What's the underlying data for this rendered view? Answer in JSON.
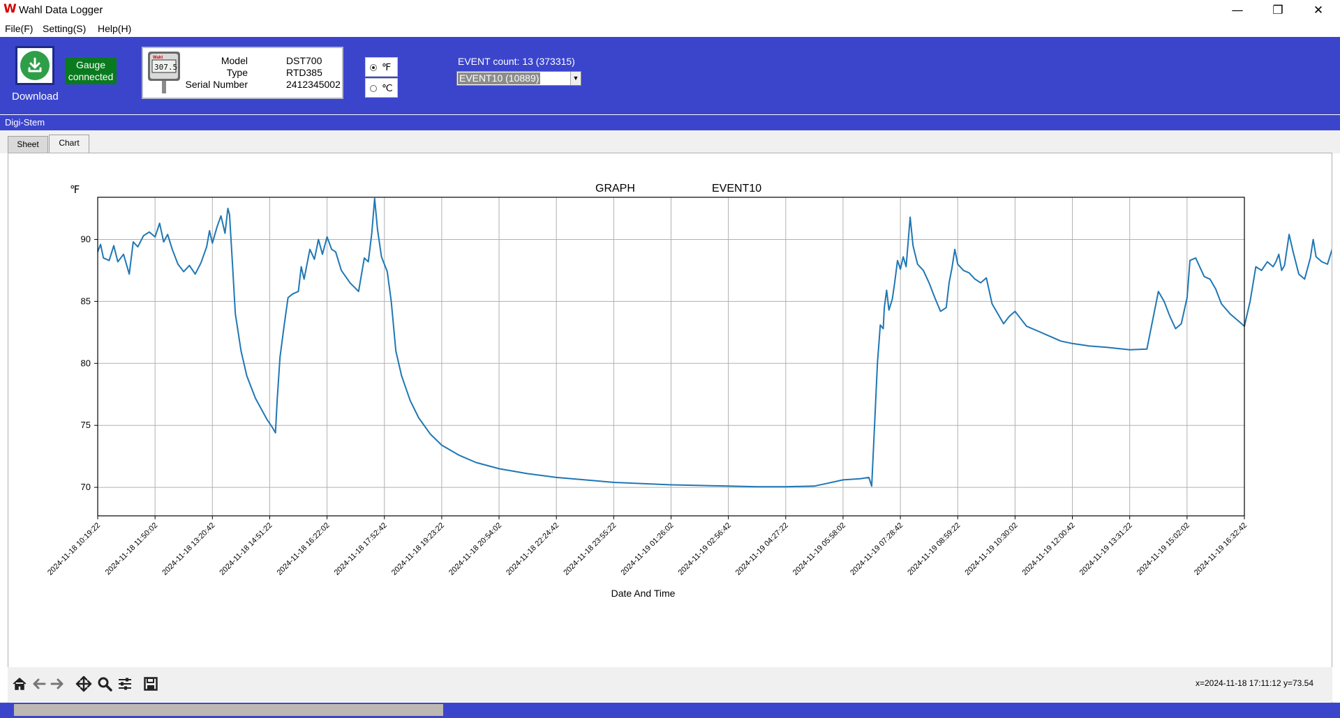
{
  "window": {
    "title": "Wahl Data Logger",
    "app_icon": "W",
    "minimize_glyph": "—",
    "restore_glyph": "❐",
    "close_glyph": "✕"
  },
  "menu": [
    {
      "label": "File(F)"
    },
    {
      "label": "Setting(S)"
    },
    {
      "label": "Help(H)"
    }
  ],
  "toolbar": {
    "download_label": "Download",
    "gauge_status_line1": "Gauge",
    "gauge_status_line2": "connected",
    "device": {
      "model_label": "Model",
      "model_value": "DST700",
      "type_label": "Type",
      "type_value": "RTD385",
      "serial_label": "Serial Number",
      "serial_value": "2412345002",
      "display_reading": "307.5",
      "brand": "Wahl"
    },
    "units": {
      "fahrenheit": "℉",
      "celsius": "℃",
      "selected": "℉"
    },
    "event_count_text": "EVENT count: 13   (373315)",
    "event_selected": "EVENT10    (10889)"
  },
  "status_band": {
    "text": "Digi-Stem"
  },
  "tabs": [
    {
      "label": "Sheet",
      "active": false
    },
    {
      "label": "Chart",
      "active": true
    }
  ],
  "chart_data": {
    "type": "line",
    "title_left": "GRAPH",
    "title_right": "EVENT10",
    "ylabel": "℉",
    "xlabel": "Date And Time",
    "ylim": [
      67.7,
      93.4
    ],
    "yticks": [
      70,
      75,
      80,
      85,
      90
    ],
    "xticks": [
      "2024-11-18 10:19:22",
      "2024-11-18 11:50:02",
      "2024-11-18 13:20:42",
      "2024-11-18 14:51:22",
      "2024-11-18 16:22:02",
      "2024-11-18 17:52:42",
      "2024-11-18 19:23:22",
      "2024-11-18 20:54:02",
      "2024-11-18 22:24:42",
      "2024-11-18 23:55:22",
      "2024-11-19 01:26:02",
      "2024-11-19 02:56:42",
      "2024-11-19 04:27:22",
      "2024-11-19 05:58:02",
      "2024-11-19 07:28:42",
      "2024-11-19 08:59:22",
      "2024-11-19 10:30:02",
      "2024-11-19 12:00:42",
      "2024-11-19 13:31:22",
      "2024-11-19 15:02:02",
      "2024-11-19 16:32:42"
    ],
    "grid": true,
    "line_color": "#1f77b4",
    "x_unit_note": "x values are tick indices (0 = first tick, 20 = last tick)",
    "series": [
      {
        "points": [
          [
            0.0,
            89.0
          ],
          [
            0.05,
            89.6
          ],
          [
            0.1,
            88.5
          ],
          [
            0.2,
            88.3
          ],
          [
            0.28,
            89.5
          ],
          [
            0.35,
            88.2
          ],
          [
            0.45,
            88.8
          ],
          [
            0.55,
            87.2
          ],
          [
            0.62,
            89.8
          ],
          [
            0.7,
            89.4
          ],
          [
            0.8,
            90.3
          ],
          [
            0.9,
            90.6
          ],
          [
            1.0,
            90.2
          ],
          [
            1.08,
            91.3
          ],
          [
            1.15,
            89.8
          ],
          [
            1.22,
            90.4
          ],
          [
            1.3,
            89.2
          ],
          [
            1.4,
            88.0
          ],
          [
            1.5,
            87.4
          ],
          [
            1.6,
            87.9
          ],
          [
            1.7,
            87.2
          ],
          [
            1.8,
            88.1
          ],
          [
            1.9,
            89.4
          ],
          [
            1.95,
            90.7
          ],
          [
            2.0,
            89.7
          ],
          [
            2.08,
            91.0
          ],
          [
            2.15,
            91.9
          ],
          [
            2.22,
            90.5
          ],
          [
            2.27,
            92.5
          ],
          [
            2.3,
            92.0
          ],
          [
            2.35,
            88.0
          ],
          [
            2.4,
            84.0
          ],
          [
            2.5,
            81.0
          ],
          [
            2.6,
            79.0
          ],
          [
            2.75,
            77.2
          ],
          [
            2.95,
            75.5
          ],
          [
            3.05,
            74.8
          ],
          [
            3.1,
            74.4
          ],
          [
            3.13,
            77.0
          ],
          [
            3.18,
            80.5
          ],
          [
            3.25,
            83.0
          ],
          [
            3.32,
            85.3
          ],
          [
            3.4,
            85.6
          ],
          [
            3.5,
            85.8
          ],
          [
            3.55,
            87.8
          ],
          [
            3.6,
            86.8
          ],
          [
            3.7,
            89.2
          ],
          [
            3.78,
            88.4
          ],
          [
            3.85,
            90.0
          ],
          [
            3.92,
            88.8
          ],
          [
            4.0,
            90.2
          ],
          [
            4.08,
            89.2
          ],
          [
            4.15,
            89.0
          ],
          [
            4.25,
            87.5
          ],
          [
            4.4,
            86.5
          ],
          [
            4.55,
            85.8
          ],
          [
            4.65,
            88.5
          ],
          [
            4.72,
            88.2
          ],
          [
            4.78,
            90.5
          ],
          [
            4.83,
            93.3
          ],
          [
            4.88,
            90.8
          ],
          [
            4.95,
            88.6
          ],
          [
            5.05,
            87.4
          ],
          [
            5.12,
            85.0
          ],
          [
            5.2,
            81.0
          ],
          [
            5.3,
            79.0
          ],
          [
            5.45,
            77.0
          ],
          [
            5.6,
            75.6
          ],
          [
            5.8,
            74.3
          ],
          [
            6.0,
            73.4
          ],
          [
            6.3,
            72.6
          ],
          [
            6.6,
            72.0
          ],
          [
            7.0,
            71.5
          ],
          [
            7.5,
            71.1
          ],
          [
            8.0,
            70.8
          ],
          [
            8.5,
            70.6
          ],
          [
            9.0,
            70.4
          ],
          [
            9.5,
            70.3
          ],
          [
            10.0,
            70.2
          ],
          [
            10.5,
            70.15
          ],
          [
            11.0,
            70.1
          ],
          [
            11.5,
            70.05
          ],
          [
            12.0,
            70.05
          ],
          [
            12.5,
            70.1
          ],
          [
            12.7,
            70.3
          ],
          [
            13.0,
            70.6
          ],
          [
            13.3,
            70.7
          ],
          [
            13.45,
            70.8
          ],
          [
            13.5,
            70.1
          ],
          [
            13.55,
            75.0
          ],
          [
            13.6,
            80.0
          ],
          [
            13.65,
            83.1
          ],
          [
            13.7,
            82.8
          ],
          [
            13.72,
            84.5
          ],
          [
            13.76,
            85.9
          ],
          [
            13.8,
            84.3
          ],
          [
            13.86,
            85.2
          ],
          [
            13.9,
            86.5
          ],
          [
            13.95,
            88.3
          ],
          [
            14.0,
            87.6
          ],
          [
            14.05,
            88.6
          ],
          [
            14.1,
            87.8
          ],
          [
            14.13,
            89.5
          ],
          [
            14.17,
            91.8
          ],
          [
            14.22,
            89.5
          ],
          [
            14.3,
            88.0
          ],
          [
            14.4,
            87.5
          ],
          [
            14.5,
            86.5
          ],
          [
            14.6,
            85.3
          ],
          [
            14.7,
            84.2
          ],
          [
            14.8,
            84.5
          ],
          [
            14.85,
            86.5
          ],
          [
            14.9,
            87.7
          ],
          [
            14.95,
            89.2
          ],
          [
            15.0,
            88.0
          ],
          [
            15.1,
            87.5
          ],
          [
            15.2,
            87.3
          ],
          [
            15.3,
            86.8
          ],
          [
            15.4,
            86.5
          ],
          [
            15.5,
            86.9
          ],
          [
            15.6,
            84.8
          ],
          [
            15.7,
            84.0
          ],
          [
            15.8,
            83.2
          ],
          [
            15.9,
            83.8
          ],
          [
            16.0,
            84.2
          ],
          [
            16.1,
            83.6
          ],
          [
            16.2,
            83.0
          ],
          [
            16.4,
            82.6
          ],
          [
            16.6,
            82.2
          ],
          [
            16.8,
            81.8
          ],
          [
            17.0,
            81.6
          ],
          [
            17.3,
            81.4
          ],
          [
            17.6,
            81.3
          ],
          [
            18.0,
            81.1
          ],
          [
            18.3,
            81.15
          ],
          [
            18.5,
            85.8
          ],
          [
            18.6,
            85.0
          ],
          [
            18.7,
            83.8
          ],
          [
            18.8,
            82.8
          ],
          [
            18.9,
            83.2
          ],
          [
            19.0,
            85.3
          ],
          [
            19.05,
            88.3
          ],
          [
            19.15,
            88.5
          ],
          [
            19.3,
            87.0
          ],
          [
            19.4,
            86.8
          ],
          [
            19.5,
            86.0
          ],
          [
            19.6,
            84.8
          ],
          [
            19.75,
            84.0
          ],
          [
            19.9,
            83.4
          ],
          [
            20.0,
            83.0
          ],
          [
            20.1,
            85.0
          ],
          [
            20.2,
            87.8
          ],
          [
            20.3,
            87.5
          ],
          [
            20.4,
            88.2
          ],
          [
            20.5,
            87.8
          ],
          [
            20.55,
            88.2
          ],
          [
            20.6,
            88.8
          ],
          [
            20.65,
            87.5
          ],
          [
            20.7,
            87.9
          ],
          [
            20.78,
            90.4
          ],
          [
            20.85,
            89.0
          ],
          [
            20.95,
            87.2
          ],
          [
            21.05,
            86.8
          ],
          [
            21.15,
            88.5
          ],
          [
            21.2,
            90.0
          ],
          [
            21.25,
            88.6
          ],
          [
            21.35,
            88.2
          ],
          [
            21.45,
            88.0
          ],
          [
            21.55,
            89.5
          ],
          [
            21.6,
            90.6
          ],
          [
            21.7,
            89.0
          ],
          [
            21.8,
            88.0
          ],
          [
            21.85,
            87.5
          ]
        ]
      }
    ]
  },
  "mpl_toolbar": {
    "home_icon": "home-icon",
    "back_icon": "back-arrow-icon",
    "forward_icon": "forward-arrow-icon",
    "pan_icon": "pan-icon",
    "zoom_icon": "zoom-icon",
    "config_icon": "configure-subplots-icon",
    "save_icon": "save-icon",
    "coordinates": "x=2024-11-18 17:11:12 y=73.54"
  }
}
